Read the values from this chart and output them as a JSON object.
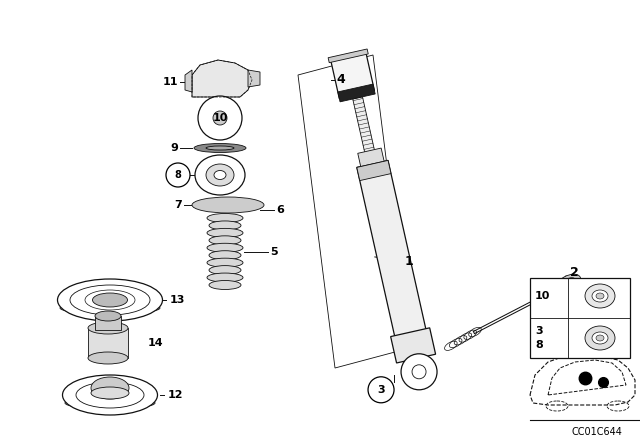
{
  "bg_color": "#ffffff",
  "fig_width": 6.4,
  "fig_height": 4.48,
  "watermark": "CC01C644",
  "line_color": "#111111",
  "label_color": "#000000"
}
